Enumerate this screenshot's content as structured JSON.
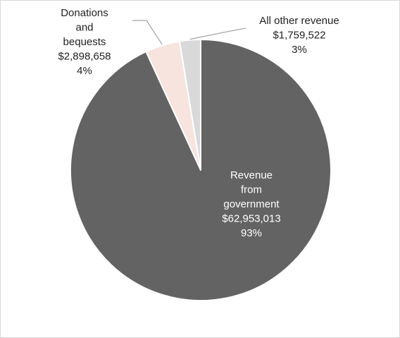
{
  "chart_data": {
    "type": "pie",
    "title": "",
    "start_angle_deg": 0,
    "direction": "clockwise",
    "slices": [
      {
        "name": "Revenue from government",
        "label_lines": [
          "Revenue",
          "from",
          "government"
        ],
        "value": 62953013,
        "value_label": "$62,953,013",
        "percent_label": "93%",
        "color": "#636363",
        "label_color": "#ffffff",
        "placement": "inside"
      },
      {
        "name": "Donations and bequests",
        "label_lines": [
          "Donations",
          "and",
          "bequests"
        ],
        "value": 2898658,
        "value_label": "$2,898,658",
        "percent_label": "4%",
        "color": "#f7e4df",
        "label_color": "#222222",
        "placement": "outside-left"
      },
      {
        "name": "All other revenue",
        "label_lines": [
          "All other revenue"
        ],
        "value": 1759522,
        "value_label": "$1,759,522",
        "percent_label": "3%",
        "color": "#d9d9d9",
        "label_color": "#222222",
        "placement": "outside-right"
      }
    ],
    "slice_border_color": "#ffffff",
    "leader_line_color": "#a6a6a6",
    "legend": "none"
  }
}
